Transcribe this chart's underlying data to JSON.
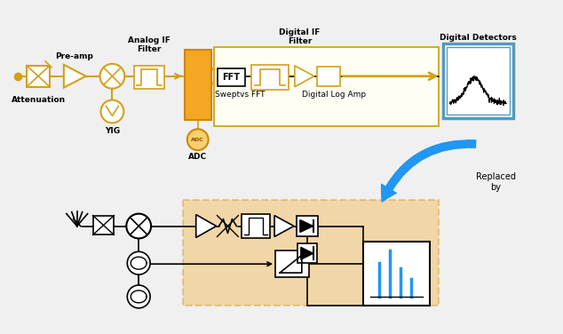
{
  "bg_color": "#f0f0f0",
  "fig_width": 6.34,
  "fig_height": 3.76,
  "dpi": 100,
  "signal_color": "#d4a017",
  "orange_block": "#f5a623",
  "orange_block_edge": "#cc8800",
  "digital_box_bg": "#fffff0",
  "digital_box_edge": "#c8a000",
  "detector_box_edge": "#5599bb",
  "arrow_blue": "#2196F3",
  "labels": {
    "pre_amp": "Pre-amp",
    "analog_if": "Analog IF\nFilter",
    "digital_if": "Digital IF\nFilter",
    "digital_det": "Digital Detectors",
    "swept_fft": "Sweptvs FFT",
    "digital_log": "Digital Log Amp",
    "attenuation": "Attenuation",
    "yig": "YIG",
    "adc": "ADC",
    "replaced_by": "Replaced\nby"
  }
}
